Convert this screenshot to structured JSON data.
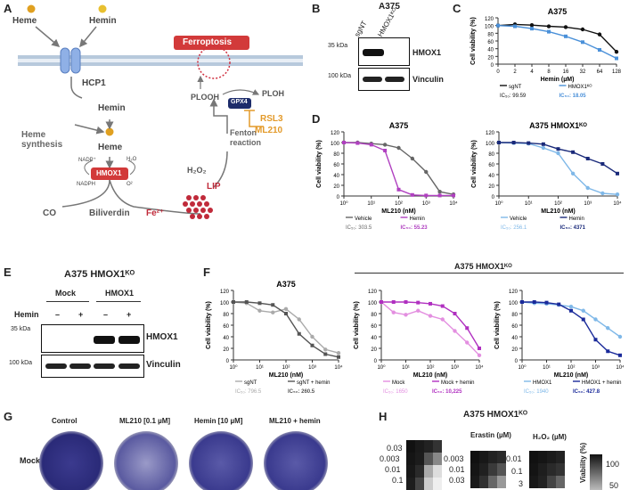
{
  "panels": {
    "A": "A",
    "B": "B",
    "C": "C",
    "D": "D",
    "E": "E",
    "F": "F",
    "G": "G",
    "H": "H"
  },
  "schematic": {
    "heme": "Heme",
    "hemin": "Hemin",
    "hcp1": "HCP1",
    "hemin2": "Hemin",
    "heme_synthesis": "Heme synthesis",
    "heme2": "Heme",
    "hmox1": "HMOX1",
    "nadp": "NADP⁺",
    "h2o": "H₂O",
    "nadph": "NADPH",
    "o2": "O²",
    "co": "CO",
    "biliverdin": "Biliverdin",
    "fe2": "Fe²⁺",
    "lip": "LIP",
    "ferroptosis": "Ferroptosis",
    "plooh": "PLOOH",
    "ploh": "PLOH",
    "gpx4": "GPX4",
    "h2o2": "H₂O₂",
    "fenton": "Fenton reaction",
    "rsl3": "RSL3",
    "ml210": "ML210"
  },
  "blot_b": {
    "title": "A375",
    "lane1": "sgNT",
    "lane2": "HMOX1ᴷᴼ",
    "kda1": "35 kDa",
    "kda2": "100 kDa",
    "band1": "HMOX1",
    "band2": "Vinculin"
  },
  "blot_e": {
    "title": "A375 HMOX1ᴷᴼ",
    "group1": "Mock",
    "group2": "HMOX1",
    "row": "Hemin",
    "m1": "–",
    "p1": "+",
    "m2": "–",
    "p2": "+",
    "kda1": "35 kDa",
    "kda2": "100 kDa",
    "band1": "HMOX1",
    "band2": "Vinculin"
  },
  "panel_f_header": "A375 HMOX1ᴷᴼ",
  "panel_g": {
    "cols": [
      "Control",
      "ML210 [0.1 µM]",
      "Hemin [10 µM]",
      "ML210 + hemin"
    ],
    "row": "Mock"
  },
  "panel_h": {
    "title": "A375 HMOX1ᴷᴼ",
    "erastin": "Erastin (µM)",
    "h2o2": "H₂O₂ (µM)",
    "rows1": [
      "0.03",
      "0.003",
      "0.01",
      "0.1"
    ],
    "rows2": [
      "0.003",
      "0.01",
      "0.03"
    ],
    "rows3": [
      "0.01",
      "0.1",
      "3"
    ],
    "cbar_label": "Viability (%)",
    "cbar_max": "100",
    "cbar_mid": "50"
  },
  "chart_data": [
    {
      "id": "C",
      "type": "scatter",
      "title": "A375",
      "xlabel": "Hemin (µM)",
      "ylabel": "Cell viability (%)",
      "xticks": [
        "0",
        "2",
        "4",
        "8",
        "16",
        "32",
        "64",
        "128"
      ],
      "ylim": [
        0,
        120
      ],
      "yticks": [
        0,
        20,
        40,
        60,
        80,
        100,
        120
      ],
      "series": [
        {
          "name": "sgNT",
          "color": "#111111",
          "x": [
            0,
            1,
            2,
            3,
            4,
            5,
            6,
            7
          ],
          "y": [
            100,
            103,
            101,
            98,
            96,
            90,
            77,
            32
          ]
        },
        {
          "name": "HMOX1ᴷᴼ",
          "color": "#4a90d9",
          "x": [
            0,
            1,
            2,
            3,
            4,
            5,
            6,
            7
          ],
          "y": [
            100,
            98,
            92,
            84,
            72,
            57,
            37,
            15
          ]
        }
      ],
      "ic50": [
        {
          "label": "IC₅₀: 99.59",
          "color": "#111111"
        },
        {
          "label": "IC₅₀: 18.05",
          "color": "#4a90d9"
        }
      ]
    },
    {
      "id": "D1",
      "type": "scatter",
      "title": "A375",
      "xlabel": "ML210 (nM)",
      "ylabel": "Cell viability (%)",
      "xticks": [
        "10⁰",
        "10¹",
        "10²",
        "10³",
        "10⁴"
      ],
      "ylim": [
        0,
        120
      ],
      "yticks": [
        0,
        20,
        40,
        60,
        80,
        100,
        120
      ],
      "series": [
        {
          "name": "Vehicle",
          "color": "#666666",
          "logx": [
            0,
            0.5,
            1,
            1.5,
            2,
            2.5,
            3,
            3.5,
            4
          ],
          "y": [
            100,
            100,
            98,
            96,
            90,
            70,
            45,
            8,
            3
          ]
        },
        {
          "name": "Hemin",
          "color": "#b040c0",
          "logx": [
            0,
            0.5,
            1,
            1.5,
            2,
            2.5,
            3,
            3.5,
            4
          ],
          "y": [
            100,
            99,
            96,
            85,
            12,
            2,
            1,
            1,
            1
          ]
        }
      ],
      "ic50": [
        {
          "label": "IC₅₀: 303.5",
          "color": "#666666"
        },
        {
          "label": "IC₅₀: 55.23",
          "color": "#b040c0"
        }
      ]
    },
    {
      "id": "D2",
      "type": "scatter",
      "title": "A375 HMOX1ᴷᴼ",
      "xlabel": "ML210 (nM)",
      "ylabel": "Cell viability (%)",
      "xticks": [
        "10⁰",
        "10¹",
        "10²",
        "10³",
        "10⁴"
      ],
      "ylim": [
        0,
        120
      ],
      "yticks": [
        0,
        20,
        40,
        60,
        80,
        100,
        120
      ],
      "series": [
        {
          "name": "Vehicle",
          "color": "#7fb8e8",
          "logx": [
            0,
            0.5,
            1,
            1.5,
            2,
            2.5,
            3,
            3.5,
            4
          ],
          "y": [
            100,
            99,
            98,
            90,
            80,
            42,
            15,
            5,
            3
          ]
        },
        {
          "name": "Hemin",
          "color": "#1a2a7a",
          "logx": [
            0,
            0.5,
            1,
            1.5,
            2,
            2.5,
            3,
            3.5,
            4
          ],
          "y": [
            100,
            100,
            99,
            97,
            88,
            82,
            70,
            60,
            42
          ]
        }
      ],
      "ic50": [
        {
          "label": "IC₅₀: 256.1",
          "color": "#7fb8e8"
        },
        {
          "label": "IC₅₀: 4371",
          "color": "#1a2a7a"
        }
      ]
    },
    {
      "id": "F1",
      "type": "scatter",
      "title": "A375",
      "xlabel": "ML210 (nM)",
      "ylabel": "Cell viability (%)",
      "xticks": [
        "10⁰",
        "10¹",
        "10²",
        "10³",
        "10⁴"
      ],
      "ylim": [
        0,
        120
      ],
      "yticks": [
        0,
        20,
        40,
        60,
        80,
        100,
        120
      ],
      "series": [
        {
          "name": "sgNT",
          "color": "#aaaaaa",
          "logx": [
            0,
            0.5,
            1,
            1.5,
            2,
            2.5,
            3,
            3.5,
            4
          ],
          "y": [
            100,
            98,
            85,
            82,
            88,
            70,
            40,
            18,
            12
          ]
        },
        {
          "name": "sgNT + hemin",
          "color": "#555555",
          "logx": [
            0,
            0.5,
            1,
            1.5,
            2,
            2.5,
            3,
            3.5,
            4
          ],
          "y": [
            100,
            100,
            98,
            95,
            80,
            45,
            25,
            10,
            5
          ]
        }
      ],
      "ic50": [
        {
          "label": "IC₅₀: 796.5",
          "color": "#aaaaaa"
        },
        {
          "label": "IC₅₀: 260.5",
          "color": "#555555"
        }
      ]
    },
    {
      "id": "F2",
      "type": "scatter",
      "title": "",
      "xlabel": "ML210 (nM)",
      "ylabel": "Cell viability (%)",
      "xticks": [
        "10⁰",
        "10¹",
        "10²",
        "10³",
        "10⁴"
      ],
      "ylim": [
        0,
        120
      ],
      "yticks": [
        0,
        20,
        40,
        60,
        80,
        100,
        120
      ],
      "series": [
        {
          "name": "Mock",
          "color": "#e38fe0",
          "logx": [
            0,
            0.5,
            1,
            1.5,
            2,
            2.5,
            3,
            3.5,
            4
          ],
          "y": [
            100,
            82,
            78,
            85,
            76,
            70,
            50,
            30,
            8
          ]
        },
        {
          "name": "Mock + hemin",
          "color": "#b030c0",
          "logx": [
            0,
            0.5,
            1,
            1.5,
            2,
            2.5,
            3,
            3.5,
            4
          ],
          "y": [
            100,
            100,
            100,
            99,
            97,
            93,
            80,
            55,
            20
          ]
        }
      ],
      "ic50": [
        {
          "label": "IC₅₀: 1650",
          "color": "#e38fe0"
        },
        {
          "label": "IC₅₀: 10,225",
          "color": "#b030c0"
        }
      ]
    },
    {
      "id": "F3",
      "type": "scatter",
      "title": "",
      "xlabel": "ML210 (nM)",
      "ylabel": "Cell viability (%)",
      "xticks": [
        "10⁰",
        "10¹",
        "10²",
        "10³",
        "10⁴"
      ],
      "ylim": [
        0,
        120
      ],
      "yticks": [
        0,
        20,
        40,
        60,
        80,
        100,
        120
      ],
      "series": [
        {
          "name": "HMOX1",
          "color": "#7fb8e8",
          "logx": [
            0,
            0.5,
            1,
            1.5,
            2,
            2.5,
            3,
            3.5,
            4
          ],
          "y": [
            100,
            98,
            97,
            95,
            92,
            85,
            70,
            55,
            40
          ]
        },
        {
          "name": "HMOX1 + hemin",
          "color": "#1a2a9a",
          "logx": [
            0,
            0.5,
            1,
            1.5,
            2,
            2.5,
            3,
            3.5,
            4
          ],
          "y": [
            100,
            100,
            99,
            96,
            85,
            70,
            35,
            15,
            8
          ]
        }
      ],
      "ic50": [
        {
          "label": "IC₅₀: 1940",
          "color": "#7fb8e8"
        },
        {
          "label": "IC₅₀: 427.8",
          "color": "#1a2a9a"
        }
      ]
    }
  ]
}
